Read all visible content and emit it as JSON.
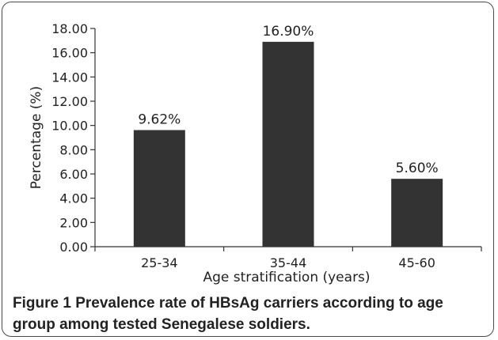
{
  "chart_data": {
    "type": "bar",
    "categories": [
      "25-34",
      "35-44",
      "45-60"
    ],
    "values": [
      9.62,
      16.9,
      5.6
    ],
    "data_labels": [
      "9.62%",
      "16.90%",
      "5.60%"
    ],
    "xlabel": "Age stratification (years)",
    "ylabel": "Percentage (%)",
    "ylim": [
      0,
      18
    ],
    "yticks": [
      "0.00",
      "2.00",
      "4.00",
      "6.00",
      "8.00",
      "10.00",
      "12.00",
      "14.00",
      "16.00",
      "18.00"
    ],
    "grid": false,
    "bar_color": "#333333"
  },
  "caption": {
    "label": "Figure 1",
    "text": "Prevalence rate of HBsAg carriers according to age group among tested Senegalese soldiers."
  }
}
